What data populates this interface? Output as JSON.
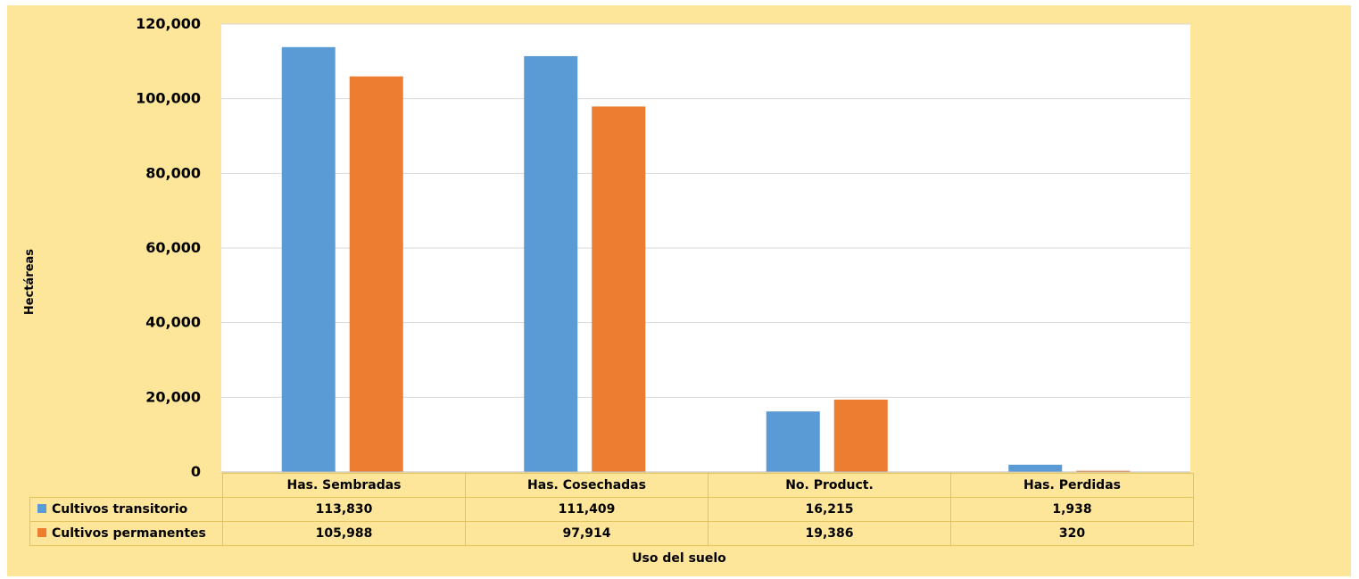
{
  "chart_data": {
    "type": "bar",
    "title": "",
    "xlabel": "Uso del suelo",
    "ylabel": "Hectáreas",
    "ylim": [
      0,
      120000
    ],
    "yticks": [
      0,
      20000,
      40000,
      60000,
      80000,
      100000,
      120000
    ],
    "ytick_labels": [
      "0",
      "20,000",
      "40,000",
      "60,000",
      "80,000",
      "100,000",
      "120,000"
    ],
    "grid": true,
    "legend": "data-table",
    "categories": [
      "Has. Sembradas",
      "Has. Cosechadas",
      "No. Product.",
      "Has. Perdidas"
    ],
    "series": [
      {
        "name": "Cultivos transitorio",
        "color": "#5b9bd5",
        "values": [
          113830,
          111409,
          16215,
          1938
        ],
        "labels": [
          "113,830",
          "111,409",
          "16,215",
          "1,938"
        ]
      },
      {
        "name": "Cultivos permanentes",
        "color": "#ed7d31",
        "values": [
          105988,
          97914,
          19386,
          320
        ],
        "labels": [
          "105,988",
          "97,914",
          "19,386",
          "320"
        ]
      }
    ]
  },
  "colors": {
    "chart_background": "#fde59a",
    "plot_background": "#ffffff",
    "gridline": "#d9d9d9"
  }
}
